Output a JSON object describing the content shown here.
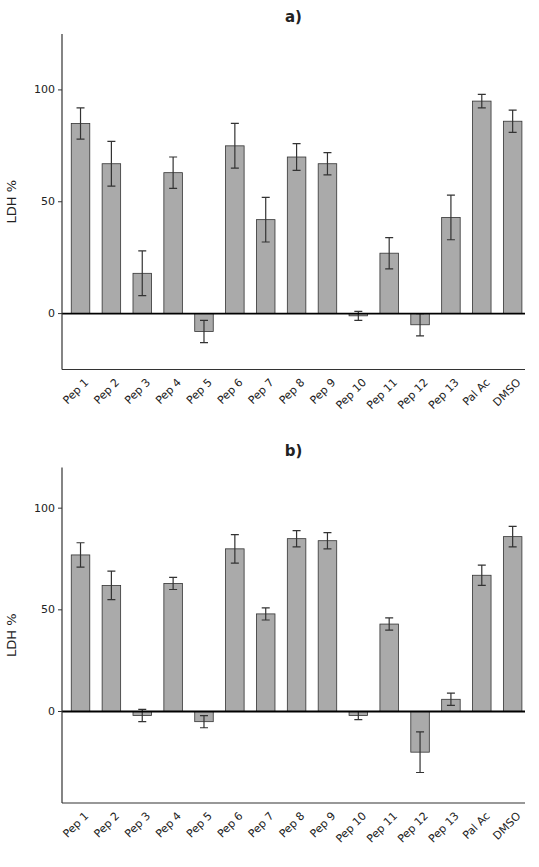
{
  "chart_data": [
    {
      "type": "bar",
      "title": "a)",
      "ylabel": "LDH %",
      "categories": [
        "Pep 1",
        "Pep 2",
        "Pep 3",
        "Pep 4",
        "Pep 5",
        "Pep 6",
        "Pep 7",
        "Pep 8",
        "Pep 9",
        "Pep 10",
        "Pep 11",
        "Pep 12",
        "Pep 13",
        "Pal Ac",
        "DMSO"
      ],
      "values": [
        85,
        67,
        18,
        63,
        -8,
        75,
        42,
        70,
        67,
        -1,
        27,
        -5,
        43,
        95,
        86
      ],
      "errors": [
        7,
        10,
        10,
        7,
        5,
        10,
        10,
        6,
        5,
        2,
        7,
        5,
        10,
        3,
        5
      ],
      "color": "#aaaaaa",
      "ylim": [
        -25,
        125
      ],
      "yticks": [
        0,
        50,
        100
      ],
      "grid": false
    },
    {
      "type": "bar",
      "title": "b)",
      "ylabel": "LDH %",
      "categories": [
        "Pep 1",
        "Pep 2",
        "Pep 3",
        "Pep 4",
        "Pep 5",
        "Pep 6",
        "Pep 7",
        "Pep 8",
        "Pep 9",
        "Pep 10",
        "Pep 11",
        "Pep 12",
        "Pep 13",
        "Pal Ac",
        "DMSO"
      ],
      "values": [
        77,
        62,
        -2,
        63,
        -5,
        80,
        48,
        85,
        84,
        -2,
        43,
        -20,
        6,
        67,
        86
      ],
      "errors": [
        6,
        7,
        3,
        3,
        3,
        7,
        3,
        4,
        4,
        2,
        3,
        10,
        3,
        5,
        5
      ],
      "color": "#aaaaaa",
      "ylim": [
        -45,
        120
      ],
      "yticks": [
        0,
        50,
        100
      ],
      "grid": false
    }
  ]
}
